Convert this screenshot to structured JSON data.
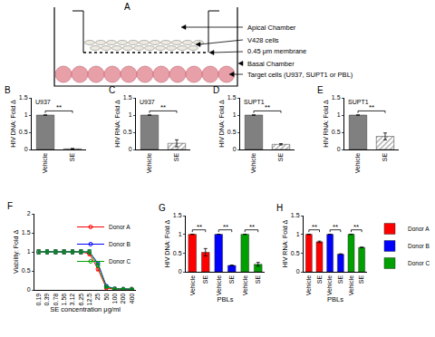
{
  "diagram": {
    "panel": "A",
    "labels": [
      "Apical Chamber",
      "V428 cells",
      "0.45 μm membrane",
      "Basal Chamber",
      "Target cells (U937, SUPT1 or PBL)"
    ]
  },
  "chart_data": [
    {
      "panel": "B",
      "type": "bar",
      "subtitle": "U937",
      "y_label": "HIV DNA: Fold Δ",
      "categories": [
        "Vehicle",
        "SE"
      ],
      "values": [
        1,
        0.02
      ],
      "errors": [
        0,
        0.01
      ],
      "colors": [
        "#808080",
        "#a0a0a0"
      ],
      "ylim": [
        0,
        1.5
      ],
      "yticks": [
        0,
        0.5,
        1,
        1.5
      ],
      "significance": [
        {
          "pair": [
            0,
            1
          ],
          "text": "**"
        }
      ]
    },
    {
      "panel": "C",
      "type": "bar",
      "subtitle": "U937",
      "y_label": "HIV RNA: Fold Δ",
      "categories": [
        "Vehicle",
        "SE"
      ],
      "values": [
        1,
        0.18
      ],
      "errors": [
        0,
        0.1
      ],
      "colors": [
        "#808080",
        "#a0a0a0"
      ],
      "ylim": [
        0,
        1.5
      ],
      "yticks": [
        0,
        0.5,
        1,
        1.5
      ],
      "significance": [
        {
          "pair": [
            0,
            1
          ],
          "text": "**"
        }
      ]
    },
    {
      "panel": "D",
      "type": "bar",
      "subtitle": "SUPT1",
      "y_label": "HIV DNA: Fold Δ",
      "categories": [
        "Vehicle",
        "SE"
      ],
      "values": [
        1,
        0.15
      ],
      "errors": [
        0,
        0.02
      ],
      "colors": [
        "#808080",
        "#a0a0a0"
      ],
      "ylim": [
        0,
        1.5
      ],
      "yticks": [
        0,
        0.5,
        1,
        1.5
      ],
      "significance": [
        {
          "pair": [
            0,
            1
          ],
          "text": "**"
        }
      ]
    },
    {
      "panel": "E",
      "type": "bar",
      "subtitle": "SUPT1",
      "y_label": "HIV RNA: Fold Δ",
      "categories": [
        "Vehicle",
        "SE"
      ],
      "values": [
        1,
        0.38
      ],
      "errors": [
        0,
        0.1
      ],
      "colors": [
        "#808080",
        "#a0a0a0"
      ],
      "ylim": [
        0,
        1.5
      ],
      "yticks": [
        0,
        0.5,
        1,
        1.5
      ],
      "significance": [
        {
          "pair": [
            0,
            1
          ],
          "text": "**"
        }
      ]
    },
    {
      "panel": "F",
      "type": "line",
      "x_label": "SE concentration μg/ml",
      "y_label": "Viability: Fold Δ",
      "categories": [
        "0.19",
        "0.39",
        "0.78",
        "1.56",
        "3.12",
        "6.25",
        "12.5",
        "25",
        "50",
        "100",
        "200",
        "400"
      ],
      "series": [
        {
          "name": "Donor A",
          "color": "#ff0000",
          "values": [
            1,
            1,
            1,
            1,
            1,
            1,
            0.95,
            0.55,
            0.05,
            0.02,
            0.02,
            0.02
          ],
          "errors": [
            0.05,
            0.05,
            0.05,
            0.05,
            0.05,
            0.05,
            0.05,
            0.05,
            0.02,
            0.01,
            0.01,
            0.01
          ]
        },
        {
          "name": "Donor B",
          "color": "#0000ff",
          "values": [
            1,
            1,
            1,
            1,
            1,
            1,
            1,
            0.7,
            0.1,
            0.03,
            0.02,
            0.02
          ],
          "errors": [
            0.05,
            0.05,
            0.05,
            0.05,
            0.05,
            0.05,
            0.05,
            0.05,
            0.02,
            0.01,
            0.01,
            0.01
          ]
        },
        {
          "name": "Donor C",
          "color": "#00a000",
          "values": [
            1,
            1,
            1,
            1,
            1,
            1,
            1,
            0.65,
            0.08,
            0.03,
            0.02,
            0.02
          ],
          "errors": [
            0.05,
            0.05,
            0.05,
            0.05,
            0.05,
            0.05,
            0.05,
            0.05,
            0.02,
            0.01,
            0.01,
            0.01
          ]
        }
      ],
      "marker": "circle-open",
      "ylim": [
        0,
        2
      ],
      "yticks": [
        0,
        0.5,
        1,
        1.5,
        2
      ],
      "legend": "upper right"
    },
    {
      "panel": "G",
      "type": "bar",
      "x_label": "PBLs",
      "y_label": "HIV DNA: Fold Δ",
      "categories": [
        "Vehicle",
        "SE",
        "Vehicle",
        "SE",
        "Vehicle",
        "SE"
      ],
      "series": [
        {
          "name": "Donor A",
          "color": "#ff0000",
          "values": [
            1,
            0.52,
            null,
            null,
            null,
            null
          ],
          "errors": [
            0,
            0.1,
            null,
            null,
            null,
            null
          ]
        },
        {
          "name": "Donor B",
          "color": "#0000ff",
          "values": [
            null,
            null,
            1,
            0.17,
            null,
            null
          ],
          "errors": [
            null,
            null,
            0,
            0.01,
            null,
            null
          ]
        },
        {
          "name": "Donor C",
          "color": "#00a000",
          "values": [
            null,
            null,
            null,
            null,
            1,
            0.2
          ],
          "errors": [
            null,
            null,
            null,
            null,
            0,
            0.05
          ]
        }
      ],
      "ylim": [
        0,
        1.5
      ],
      "yticks": [
        0,
        0.5,
        1,
        1.5
      ],
      "significance": [
        {
          "pair": [
            0,
            1
          ],
          "text": "**"
        },
        {
          "pair": [
            2,
            3
          ],
          "text": "**"
        },
        {
          "pair": [
            4,
            5
          ],
          "text": "**"
        }
      ]
    },
    {
      "panel": "H",
      "type": "bar",
      "x_label": "PBLs",
      "y_label": "HIV RNA: Fold Δ",
      "categories": [
        "Vehicle",
        "SE",
        "Vehicle",
        "SE",
        "Vehicle",
        "SE"
      ],
      "series": [
        {
          "name": "Donor A",
          "color": "#ff0000",
          "values": [
            1,
            0.8,
            null,
            null,
            null,
            null
          ],
          "errors": [
            0,
            0.02,
            null,
            null,
            null,
            null
          ]
        },
        {
          "name": "Donor B",
          "color": "#0000ff",
          "values": [
            null,
            null,
            1,
            0.47,
            null,
            null
          ],
          "errors": [
            null,
            null,
            0,
            0.01,
            null,
            null
          ]
        },
        {
          "name": "Donor C",
          "color": "#00a000",
          "values": [
            null,
            null,
            null,
            null,
            1,
            0.65
          ],
          "errors": [
            null,
            null,
            null,
            null,
            0,
            0.01
          ]
        }
      ],
      "ylim": [
        0,
        1.5
      ],
      "yticks": [
        0,
        0.5,
        1,
        1.5
      ],
      "legend": "right",
      "significance": [
        {
          "pair": [
            0,
            1
          ],
          "text": "**"
        },
        {
          "pair": [
            2,
            3
          ],
          "text": "**"
        },
        {
          "pair": [
            4,
            5
          ],
          "text": "**"
        }
      ]
    }
  ]
}
